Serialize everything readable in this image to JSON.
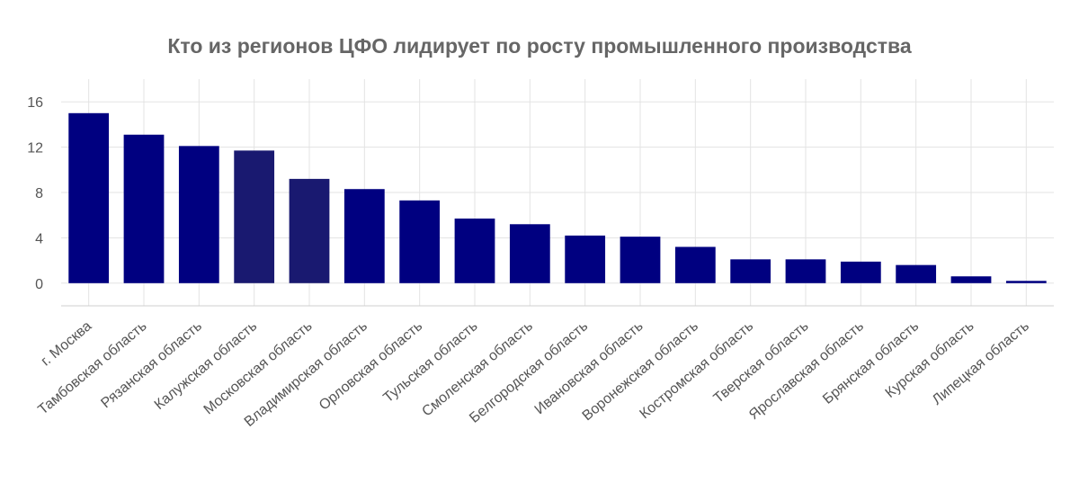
{
  "chart_data": {
    "type": "bar",
    "title": "Кто из регионов ЦФО лидирует по росту промышленного производства",
    "xlabel": "",
    "ylabel": "",
    "ylim": [
      -2,
      18
    ],
    "yticks": [
      0,
      4,
      8,
      12,
      16
    ],
    "grid": true,
    "legend": "none",
    "categories": [
      "г. Москва",
      "Тамбовская область",
      "Рязанская область",
      "Калужская область",
      "Московская область",
      "Владимирская область",
      "Орловская область",
      "Тульская область",
      "Смоленская область",
      "Белгородская область",
      "Ивановская область",
      "Воронежская область",
      "Костромская область",
      "Тверская область",
      "Ярославская область",
      "Брянская область",
      "Курская область",
      "Липецкая область"
    ],
    "values": [
      15.0,
      13.1,
      12.1,
      11.7,
      9.2,
      8.3,
      7.3,
      5.7,
      5.2,
      4.2,
      4.1,
      3.2,
      2.1,
      2.1,
      1.9,
      1.6,
      0.6,
      0.2
    ],
    "colors": {
      "bar": "#000080",
      "bar_highlight": "#191970"
    },
    "highlighted": [
      "Калужская область",
      "Московская область"
    ]
  }
}
